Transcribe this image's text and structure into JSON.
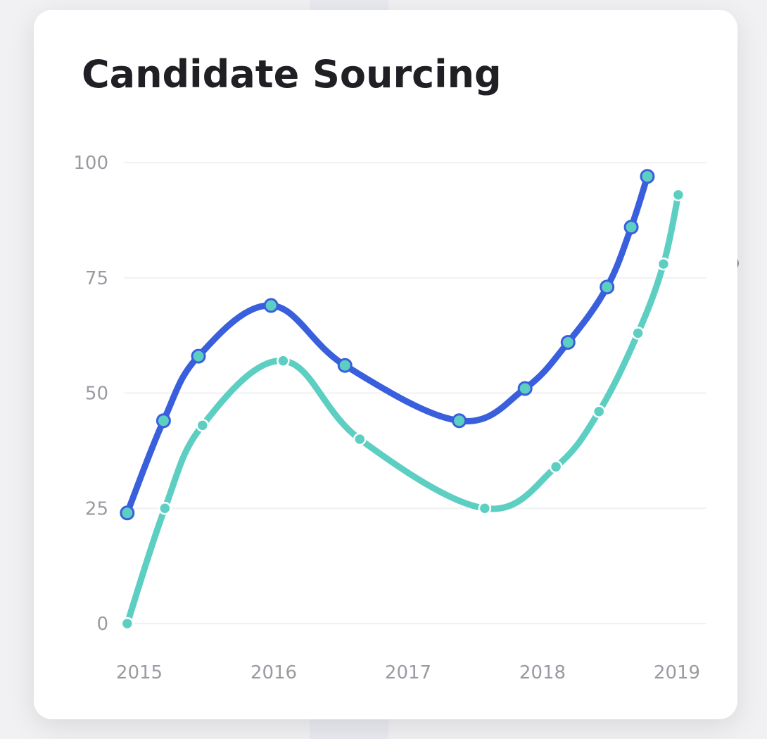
{
  "background": {
    "partial_text": "S"
  },
  "card": {
    "title": "Candidate Sourcing"
  },
  "chart_data": {
    "type": "line",
    "title": "Candidate Sourcing",
    "xlabel": "",
    "ylabel": "",
    "ylim": [
      0,
      100
    ],
    "yticks": [
      "0",
      "25",
      "50",
      "75",
      "100"
    ],
    "xticks": [
      "2015",
      "2016",
      "2017",
      "2018",
      "2019"
    ],
    "xlim": [
      2015,
      2019
    ],
    "grid": true,
    "legend": "none",
    "series": [
      {
        "color": "#3a5fdc",
        "point_fill": "#5dcfc2",
        "points": [
          {
            "x": 2014.91,
            "y": 24
          },
          {
            "x": 2015.18,
            "y": 44
          },
          {
            "x": 2015.44,
            "y": 58
          },
          {
            "x": 2015.98,
            "y": 69
          },
          {
            "x": 2016.53,
            "y": 56
          },
          {
            "x": 2017.38,
            "y": 44
          },
          {
            "x": 2017.87,
            "y": 51
          },
          {
            "x": 2018.19,
            "y": 61
          },
          {
            "x": 2018.48,
            "y": 73
          },
          {
            "x": 2018.66,
            "y": 86
          },
          {
            "x": 2018.78,
            "y": 97
          }
        ]
      },
      {
        "color": "#5dcfc2",
        "point_fill": "#5dcfc2",
        "points": [
          {
            "x": 2014.91,
            "y": 0
          },
          {
            "x": 2015.19,
            "y": 25
          },
          {
            "x": 2015.47,
            "y": 43
          },
          {
            "x": 2016.07,
            "y": 57
          },
          {
            "x": 2016.64,
            "y": 40
          },
          {
            "x": 2017.57,
            "y": 25
          },
          {
            "x": 2018.1,
            "y": 34
          },
          {
            "x": 2018.42,
            "y": 46
          },
          {
            "x": 2018.71,
            "y": 63
          },
          {
            "x": 2018.9,
            "y": 78
          },
          {
            "x": 2019.01,
            "y": 93
          }
        ]
      }
    ]
  }
}
